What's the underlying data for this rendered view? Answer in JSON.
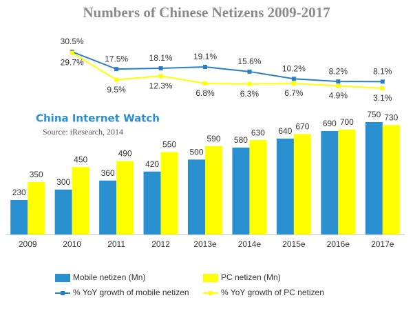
{
  "chart_data": {
    "type": "bar",
    "title": "Numbers of Chinese Netizens 2009-2017",
    "annotations": [
      "China Internet Watch",
      "Source: iResearch, 2014"
    ],
    "categories": [
      "2009",
      "2010",
      "2011",
      "2012",
      "2013e",
      "2014e",
      "2015e",
      "2016e",
      "2017e"
    ],
    "legend": "bottom",
    "series": [
      {
        "name": "Mobile netizen (Mn)",
        "type": "bar",
        "color": "#2a8fcf",
        "values": [
          230,
          300,
          360,
          420,
          500,
          580,
          640,
          690,
          750
        ]
      },
      {
        "name": "PC netizen (Mn)",
        "type": "bar",
        "color": "#ffff00",
        "values": [
          350,
          450,
          490,
          550,
          590,
          630,
          670,
          700,
          730
        ]
      },
      {
        "name": "% YoY growth of mobile netizen",
        "type": "line",
        "color": "#2a7fc0",
        "values": [
          null,
          30.5,
          17.5,
          18.1,
          19.1,
          15.6,
          10.2,
          8.2,
          8.1
        ],
        "value_labels": [
          null,
          "30.5%",
          "17.5%",
          "18.1%",
          "19.1%",
          "15.6%",
          "10.2%",
          "8.2%",
          "8.1%"
        ]
      },
      {
        "name": "% YoY growth of PC netizen",
        "type": "line",
        "color": "#ffff00",
        "values": [
          null,
          29.7,
          9.5,
          12.3,
          6.8,
          6.3,
          6.7,
          4.9,
          3.1
        ],
        "value_labels": [
          null,
          "29.7%",
          "9.5%",
          "12.3%",
          "6.8%",
          "6.3%",
          "6.7%",
          "4.9%",
          "3.1%"
        ]
      }
    ]
  }
}
